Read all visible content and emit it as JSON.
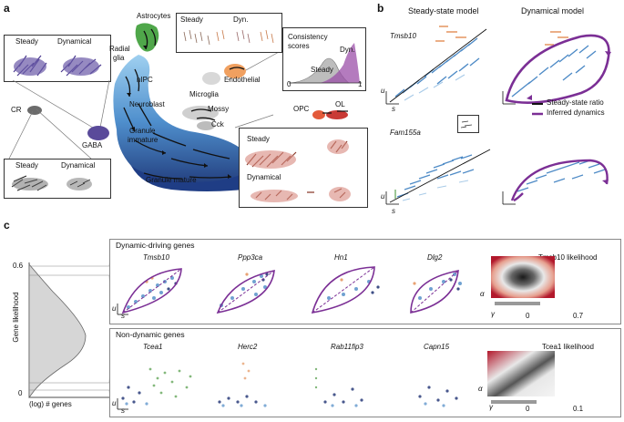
{
  "panels": {
    "a": "a",
    "b": "b",
    "c": "c"
  },
  "panel_a": {
    "inset_left_top": {
      "steady": "Steady",
      "dynamical": "Dynamical"
    },
    "inset_left_bottom": {
      "steady": "Steady",
      "dynamical": "Dynamical"
    },
    "inset_center_top": {
      "steady": "Steady",
      "dyn": "Dyn."
    },
    "consistency_box": {
      "title_line1": "Consistency",
      "title_line2": "scores",
      "dyn": "Dyn.",
      "steady": "Steady",
      "axis_min": "0",
      "axis_max": "1"
    },
    "inset_right": {
      "steady": "Steady",
      "dynamical": "Dynamical"
    },
    "cell_types": {
      "astrocytes": "Astrocytes",
      "radial_glia_1": "Radial",
      "radial_glia_2": "glia",
      "nipc": "nIPC",
      "neuroblast": "Neuroblast",
      "granule_immature_1": "Granule",
      "granule_immature_2": "immature",
      "granule_mature": "Granule mature",
      "mossy": "Mossy",
      "cck": "Cck",
      "microglia": "Microglia",
      "endothelial": "Endothelial",
      "opc": "OPC",
      "ol": "OL",
      "cr": "CR",
      "gaba": "GABA"
    }
  },
  "panel_b": {
    "title_steady": "Steady-state model",
    "title_dynamical": "Dynamical model",
    "gene1": "Tmsb10",
    "gene2": "Fam155a",
    "legend_steady": "Steady-state ratio",
    "legend_dynamics": "Inferred dynamics",
    "axis_u": "u",
    "axis_s": "s"
  },
  "panel_c": {
    "ylabel": "Gene likelihood",
    "xlabel": "(log) # genes",
    "tick_top": "0.6",
    "tick_bottom": "0",
    "dynamic_title": "Dynamic-driving genes",
    "dynamic_genes": [
      "Tmsb10",
      "Ppp3ca",
      "Hn1",
      "Dlg2"
    ],
    "tmsb10_likelihood": "Tmsb10 likelihood",
    "tmsb10_cbar_min": "0",
    "tmsb10_cbar_max": "0.7",
    "nondynamic_title": "Non-dynamic genes",
    "nondynamic_genes": [
      "Tcea1",
      "Herc2",
      "Rab11fip3",
      "Capn15"
    ],
    "tcea1_likelihood": "Tcea1 likelihood",
    "tcea1_cbar_min": "0",
    "tcea1_cbar_max": "0.1",
    "axis_u": "u",
    "axis_s": "s",
    "axis_alpha": "α",
    "axis_gamma": "γ"
  },
  "colors": {
    "purple": "#7b2f95",
    "navy": "#2a3c7a",
    "blue": "#4d8ac6",
    "lightblue": "#a9cbe8",
    "orange": "#e8a273",
    "green": "#5aa14f",
    "red": "#c7342f"
  }
}
